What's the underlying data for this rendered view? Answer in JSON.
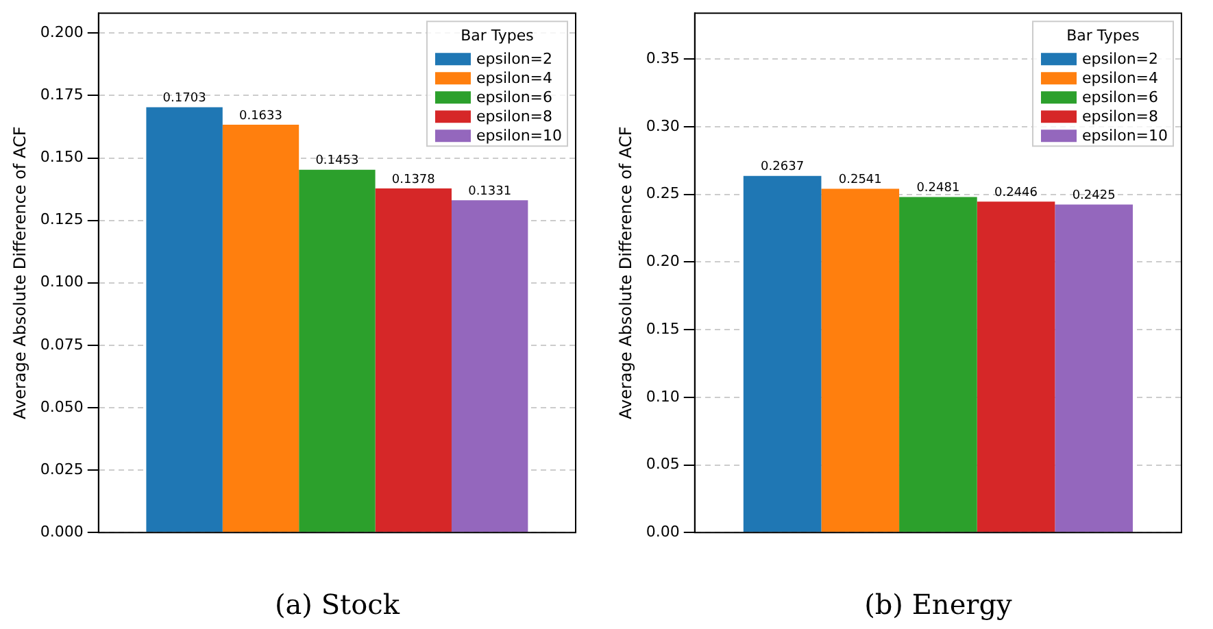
{
  "chart_data": [
    {
      "type": "bar",
      "xlabel": "(a) Stock",
      "ylabel": "Average Absolute Difference of ACF",
      "categories": [
        null
      ],
      "series": [
        {
          "name": "epsilon=2",
          "color": "#1f77b4",
          "values": [
            0.1703
          ]
        },
        {
          "name": "epsilon=4",
          "color": "#ff7f0e",
          "values": [
            0.1633
          ]
        },
        {
          "name": "epsilon=6",
          "color": "#2ca02c",
          "values": [
            0.1453
          ]
        },
        {
          "name": "epsilon=8",
          "color": "#d62728",
          "values": [
            0.1378
          ]
        },
        {
          "name": "epsilon=10",
          "color": "#9467bd",
          "values": [
            0.1331
          ]
        }
      ],
      "ylim": [
        0,
        0.208
      ],
      "yticks": [
        {
          "value": 0,
          "label": "0.000"
        },
        {
          "value": 0.025,
          "label": "0.025"
        },
        {
          "value": 0.05,
          "label": "0.050"
        },
        {
          "value": 0.075,
          "label": "0.075"
        },
        {
          "value": 0.1,
          "label": "0.100"
        },
        {
          "value": 0.125,
          "label": "0.125"
        },
        {
          "value": 0.15,
          "label": "0.150"
        },
        {
          "value": 0.175,
          "label": "0.175"
        },
        {
          "value": 0.2,
          "label": "0.200"
        }
      ],
      "grid": "y",
      "legend": "top right",
      "legend_title": "Bar Types",
      "data_labels": true
    },
    {
      "type": "bar",
      "xlabel": "(b) Energy",
      "ylabel": "Average Absolute Difference of ACF",
      "categories": [
        null
      ],
      "series": [
        {
          "name": "epsilon=2",
          "color": "#1f77b4",
          "values": [
            0.2637
          ]
        },
        {
          "name": "epsilon=4",
          "color": "#ff7f0e",
          "values": [
            0.2541
          ]
        },
        {
          "name": "epsilon=6",
          "color": "#2ca02c",
          "values": [
            0.2481
          ]
        },
        {
          "name": "epsilon=8",
          "color": "#d62728",
          "values": [
            0.2446
          ]
        },
        {
          "name": "epsilon=10",
          "color": "#9467bd",
          "values": [
            0.2425
          ]
        }
      ],
      "ylim": [
        0,
        0.384
      ],
      "yticks": [
        {
          "value": 0,
          "label": "0.00"
        },
        {
          "value": 0.05,
          "label": "0.05"
        },
        {
          "value": 0.1,
          "label": "0.10"
        },
        {
          "value": 0.15,
          "label": "0.15"
        },
        {
          "value": 0.2,
          "label": "0.20"
        },
        {
          "value": 0.25,
          "label": "0.25"
        },
        {
          "value": 0.3,
          "label": "0.30"
        },
        {
          "value": 0.35,
          "label": "0.35"
        }
      ],
      "grid": "y",
      "legend": "top right",
      "legend_title": "Bar Types",
      "data_labels": true
    }
  ]
}
